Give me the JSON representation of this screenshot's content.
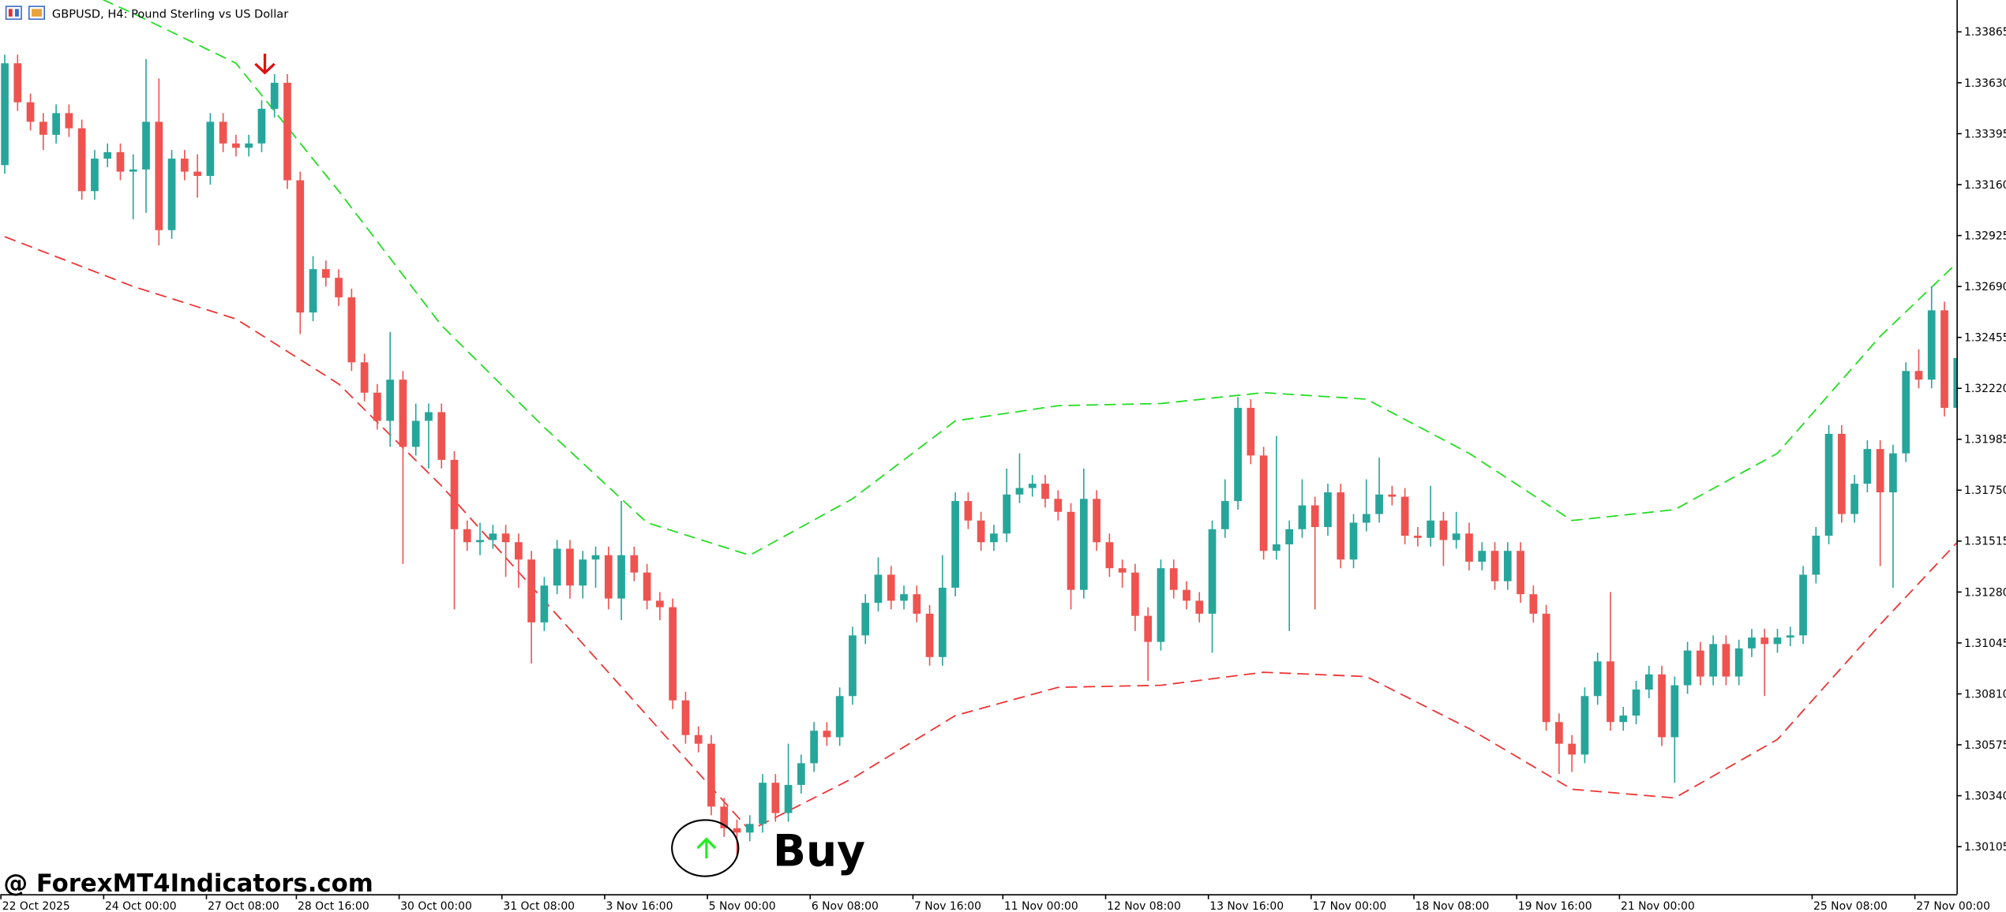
{
  "chart_data": {
    "type": "candlestick",
    "title": "GBPUSD, H4:  Pound Sterling vs US Dollar",
    "watermark": "@ ForexMT4Indicators.com",
    "annotation": "Buy",
    "up_color": "#26a69a",
    "down_color": "#ef5350",
    "ylim": [
      1.29886,
      1.34012
    ],
    "yticks": [
      1.33865,
      {
        "value": 1.3363,
        "label": "1.33630"
      },
      1.33395,
      {
        "value": 1.3316,
        "label": "1.33160"
      },
      1.32925,
      {
        "value": 1.3269,
        "label": "1.32690"
      },
      1.32455,
      {
        "value": 1.3222,
        "label": "1.32220"
      },
      1.31985,
      {
        "value": 1.3175,
        "label": "1.31750"
      },
      1.31515,
      {
        "value": 1.3128,
        "label": "1.31280"
      },
      1.31045,
      {
        "value": 1.3081,
        "label": "1.30810"
      },
      1.30575,
      {
        "value": 1.3034,
        "label": "1.30340"
      },
      1.30105
    ],
    "xticks": [
      {
        "value": 0,
        "label": "22 Oct 2025"
      },
      {
        "value": 8,
        "label": "24 Oct 00:00"
      },
      {
        "value": 16,
        "label": "27 Oct 08:00"
      },
      {
        "value": 23,
        "label": "28 Oct 16:00"
      },
      {
        "value": 31,
        "label": "30 Oct 00:00"
      },
      {
        "value": 39,
        "label": "31 Oct 08:00"
      },
      {
        "value": 47,
        "label": "3 Nov 16:00"
      },
      {
        "value": 55,
        "label": "5 Nov 00:00"
      },
      {
        "value": 63,
        "label": "6 Nov 08:00"
      },
      {
        "value": 71,
        "label": "7 Nov 16:00"
      },
      {
        "value": 78,
        "label": "11 Nov 00:00"
      },
      {
        "value": 86,
        "label": "12 Nov 08:00"
      },
      {
        "value": 94,
        "label": "13 Nov 16:00"
      },
      {
        "value": 102,
        "label": "17 Nov 00:00"
      },
      {
        "value": 110,
        "label": "18 Nov 08:00"
      },
      {
        "value": 118,
        "label": "19 Nov 16:00"
      },
      {
        "value": 126,
        "label": "21 Nov 00:00"
      },
      {
        "value": 141,
        "label": "25 Nov 08:00"
      },
      {
        "value": 149,
        "label": "27 Nov 00:00"
      }
    ],
    "candles": [
      [
        1.3325,
        1.3376,
        1.3321,
        1.3372
      ],
      [
        1.3372,
        1.3376,
        1.335,
        1.3354
      ],
      [
        1.3354,
        1.3358,
        1.3341,
        1.3345
      ],
      [
        1.3345,
        1.3349,
        1.3332,
        1.3339
      ],
      [
        1.3339,
        1.3353,
        1.3335,
        1.3349
      ],
      [
        1.3349,
        1.3353,
        1.3338,
        1.3342
      ],
      [
        1.3342,
        1.3346,
        1.3309,
        1.3313
      ],
      [
        1.3313,
        1.3332,
        1.3309,
        1.3328
      ],
      [
        1.3328,
        1.3335,
        1.3324,
        1.3331
      ],
      [
        1.3331,
        1.3335,
        1.3318,
        1.3322
      ],
      [
        1.3322,
        1.333,
        1.33,
        1.3323
      ],
      [
        1.3323,
        1.3374,
        1.3303,
        1.3345
      ],
      [
        1.3345,
        1.3365,
        1.3288,
        1.3295
      ],
      [
        1.3295,
        1.3332,
        1.3291,
        1.3328
      ],
      [
        1.3328,
        1.3332,
        1.3318,
        1.3322
      ],
      [
        1.3322,
        1.333,
        1.331,
        1.332
      ],
      [
        1.332,
        1.3349,
        1.3316,
        1.3345
      ],
      [
        1.3345,
        1.3349,
        1.3331,
        1.3335
      ],
      [
        1.3335,
        1.3339,
        1.3329,
        1.3333
      ],
      [
        1.3333,
        1.3339,
        1.3329,
        1.3335
      ],
      [
        1.3335,
        1.3355,
        1.3331,
        1.3351
      ],
      [
        1.3351,
        1.3367,
        1.3347,
        1.3363
      ],
      [
        1.3363,
        1.3367,
        1.3314,
        1.3318
      ],
      [
        1.3318,
        1.3322,
        1.3247,
        1.3257
      ],
      [
        1.3257,
        1.3283,
        1.3253,
        1.3277
      ],
      [
        1.3277,
        1.3281,
        1.3269,
        1.3273
      ],
      [
        1.3273,
        1.3277,
        1.326,
        1.3264
      ],
      [
        1.3264,
        1.3268,
        1.323,
        1.3234
      ],
      [
        1.3234,
        1.3238,
        1.3216,
        1.322
      ],
      [
        1.322,
        1.3224,
        1.3203,
        1.3207
      ],
      [
        1.3207,
        1.3248,
        1.3195,
        1.3226
      ],
      [
        1.3226,
        1.323,
        1.3141,
        1.3195
      ],
      [
        1.3195,
        1.3215,
        1.3191,
        1.3207
      ],
      [
        1.3207,
        1.3215,
        1.3185,
        1.3211
      ],
      [
        1.3211,
        1.3215,
        1.3185,
        1.3189
      ],
      [
        1.3189,
        1.3193,
        1.312,
        1.3157
      ],
      [
        1.3157,
        1.3161,
        1.3147,
        1.3151
      ],
      [
        1.3151,
        1.316,
        1.3145,
        1.3152
      ],
      [
        1.3152,
        1.3159,
        1.3148,
        1.3155
      ],
      [
        1.3155,
        1.3159,
        1.3135,
        1.3151
      ],
      [
        1.3151,
        1.3155,
        1.313,
        1.3143
      ],
      [
        1.3143,
        1.3147,
        1.3095,
        1.3114
      ],
      [
        1.3114,
        1.3135,
        1.311,
        1.3131
      ],
      [
        1.3131,
        1.3152,
        1.3127,
        1.3148
      ],
      [
        1.3148,
        1.3152,
        1.3125,
        1.3131
      ],
      [
        1.3131,
        1.3147,
        1.3125,
        1.3143
      ],
      [
        1.3143,
        1.3149,
        1.313,
        1.3145
      ],
      [
        1.3145,
        1.3149,
        1.312,
        1.3125
      ],
      [
        1.3125,
        1.317,
        1.3115,
        1.3145
      ],
      [
        1.3145,
        1.3149,
        1.3133,
        1.3137
      ],
      [
        1.3137,
        1.3141,
        1.312,
        1.3124
      ],
      [
        1.3124,
        1.3128,
        1.3115,
        1.3121
      ],
      [
        1.3121,
        1.3125,
        1.3074,
        1.3078
      ],
      [
        1.3078,
        1.3082,
        1.3058,
        1.3062
      ],
      [
        1.3062,
        1.3066,
        1.3054,
        1.3058
      ],
      [
        1.3058,
        1.3062,
        1.3025,
        1.3029
      ],
      [
        1.3029,
        1.3033,
        1.3015,
        1.3019
      ],
      [
        1.3019,
        1.3023,
        1.3005,
        1.3017
      ],
      [
        1.3017,
        1.3025,
        1.3013,
        1.3021
      ],
      [
        1.3021,
        1.3044,
        1.3017,
        1.304
      ],
      [
        1.304,
        1.3044,
        1.3022,
        1.3026
      ],
      [
        1.3026,
        1.3058,
        1.3022,
        1.3039
      ],
      [
        1.3039,
        1.3053,
        1.3035,
        1.3049
      ],
      [
        1.3049,
        1.3068,
        1.3045,
        1.3064
      ],
      [
        1.3064,
        1.3068,
        1.3057,
        1.3061
      ],
      [
        1.3061,
        1.3084,
        1.3057,
        1.308
      ],
      [
        1.308,
        1.3112,
        1.3076,
        1.3108
      ],
      [
        1.3108,
        1.3127,
        1.3104,
        1.3123
      ],
      [
        1.3123,
        1.3144,
        1.3119,
        1.3136
      ],
      [
        1.3136,
        1.314,
        1.312,
        1.3124
      ],
      [
        1.3124,
        1.3131,
        1.312,
        1.3127
      ],
      [
        1.3127,
        1.3131,
        1.3114,
        1.3118
      ],
      [
        1.3118,
        1.3122,
        1.3094,
        1.3098
      ],
      [
        1.3098,
        1.3145,
        1.3094,
        1.313
      ],
      [
        1.313,
        1.3174,
        1.3126,
        1.317
      ],
      [
        1.317,
        1.3174,
        1.3157,
        1.3161
      ],
      [
        1.3161,
        1.3165,
        1.3147,
        1.3151
      ],
      [
        1.3151,
        1.3159,
        1.3147,
        1.3155
      ],
      [
        1.3155,
        1.3185,
        1.3151,
        1.3173
      ],
      [
        1.3173,
        1.3192,
        1.3169,
        1.3176
      ],
      [
        1.3176,
        1.3182,
        1.3172,
        1.3178
      ],
      [
        1.3178,
        1.3182,
        1.3167,
        1.3171
      ],
      [
        1.3171,
        1.3175,
        1.3161,
        1.3165
      ],
      [
        1.3165,
        1.3169,
        1.312,
        1.3129
      ],
      [
        1.3129,
        1.3185,
        1.3125,
        1.3171
      ],
      [
        1.3171,
        1.3175,
        1.3147,
        1.3151
      ],
      [
        1.3151,
        1.3155,
        1.3135,
        1.3139
      ],
      [
        1.3139,
        1.3143,
        1.313,
        1.3137
      ],
      [
        1.3137,
        1.3141,
        1.311,
        1.3117
      ],
      [
        1.3117,
        1.3121,
        1.3087,
        1.3105
      ],
      [
        1.3105,
        1.3143,
        1.3101,
        1.3139
      ],
      [
        1.3139,
        1.3143,
        1.3125,
        1.3129
      ],
      [
        1.3129,
        1.3133,
        1.312,
        1.3124
      ],
      [
        1.3124,
        1.3128,
        1.3114,
        1.3118
      ],
      [
        1.3118,
        1.3161,
        1.31,
        1.3157
      ],
      [
        1.3157,
        1.318,
        1.3153,
        1.317
      ],
      [
        1.317,
        1.3218,
        1.3166,
        1.3213
      ],
      [
        1.3213,
        1.3217,
        1.3187,
        1.3191
      ],
      [
        1.3191,
        1.3195,
        1.3143,
        1.3147
      ],
      [
        1.3147,
        1.32,
        1.3143,
        1.315
      ],
      [
        1.315,
        1.3161,
        1.311,
        1.3157
      ],
      [
        1.3157,
        1.318,
        1.3153,
        1.3168
      ],
      [
        1.3168,
        1.3172,
        1.312,
        1.3158
      ],
      [
        1.3158,
        1.3178,
        1.3154,
        1.3174
      ],
      [
        1.3174,
        1.3178,
        1.3139,
        1.3143
      ],
      [
        1.3143,
        1.3164,
        1.3139,
        1.316
      ],
      [
        1.316,
        1.318,
        1.3156,
        1.3164
      ],
      [
        1.3164,
        1.319,
        1.316,
        1.3173
      ],
      [
        1.3173,
        1.3177,
        1.3168,
        1.3172
      ],
      [
        1.3172,
        1.3176,
        1.315,
        1.3154
      ],
      [
        1.3154,
        1.3158,
        1.3149,
        1.3153
      ],
      [
        1.3153,
        1.3177,
        1.3149,
        1.3161
      ],
      [
        1.3161,
        1.3165,
        1.314,
        1.3152
      ],
      [
        1.3152,
        1.3165,
        1.3148,
        1.3155
      ],
      [
        1.3155,
        1.316,
        1.3138,
        1.3142
      ],
      [
        1.3142,
        1.3151,
        1.3138,
        1.3147
      ],
      [
        1.3147,
        1.3151,
        1.3129,
        1.3133
      ],
      [
        1.3133,
        1.3151,
        1.3129,
        1.3147
      ],
      [
        1.3147,
        1.3151,
        1.3123,
        1.3127
      ],
      [
        1.3127,
        1.3131,
        1.3114,
        1.3118
      ],
      [
        1.3118,
        1.3122,
        1.3064,
        1.3068
      ],
      [
        1.3068,
        1.3072,
        1.3044,
        1.3058
      ],
      [
        1.3058,
        1.3062,
        1.3045,
        1.3053
      ],
      [
        1.3053,
        1.3084,
        1.3049,
        1.308
      ],
      [
        1.308,
        1.31,
        1.3076,
        1.3096
      ],
      [
        1.3096,
        1.3128,
        1.3064,
        1.3068
      ],
      [
        1.3068,
        1.3075,
        1.3064,
        1.3071
      ],
      [
        1.3071,
        1.3087,
        1.3067,
        1.3083
      ],
      [
        1.3083,
        1.3094,
        1.3079,
        1.309
      ],
      [
        1.309,
        1.3094,
        1.3057,
        1.3061
      ],
      [
        1.3061,
        1.3089,
        1.304,
        1.3085
      ],
      [
        1.3085,
        1.3105,
        1.3081,
        1.3101
      ],
      [
        1.3101,
        1.3105,
        1.3085,
        1.3089
      ],
      [
        1.3089,
        1.3108,
        1.3085,
        1.3104
      ],
      [
        1.3104,
        1.3108,
        1.3085,
        1.3089
      ],
      [
        1.3089,
        1.3106,
        1.3085,
        1.3102
      ],
      [
        1.3102,
        1.3111,
        1.3098,
        1.3107
      ],
      [
        1.3107,
        1.3111,
        1.308,
        1.3104
      ],
      [
        1.3104,
        1.3111,
        1.31,
        1.3107
      ],
      [
        1.3107,
        1.3112,
        1.3103,
        1.3108
      ],
      [
        1.3108,
        1.314,
        1.3104,
        1.3136
      ],
      [
        1.3136,
        1.3158,
        1.3132,
        1.3154
      ],
      [
        1.3154,
        1.3205,
        1.315,
        1.3201
      ],
      [
        1.3201,
        1.3205,
        1.316,
        1.3164
      ],
      [
        1.3164,
        1.3182,
        1.316,
        1.3178
      ],
      [
        1.3178,
        1.3198,
        1.3174,
        1.3194
      ],
      [
        1.3194,
        1.3198,
        1.314,
        1.3174
      ],
      [
        1.3174,
        1.3196,
        1.313,
        1.3192
      ],
      [
        1.3192,
        1.3234,
        1.3188,
        1.323
      ],
      [
        1.323,
        1.324,
        1.3222,
        1.3226
      ],
      [
        1.3226,
        1.3269,
        1.3222,
        1.3258
      ],
      [
        1.3258,
        1.3262,
        1.3209,
        1.3213
      ],
      [
        1.3213,
        1.324,
        1.3209,
        1.3236
      ]
    ],
    "bands": [
      {
        "color": "#22dd22",
        "x": [
          0,
          10,
          18,
          26,
          34,
          42,
          50,
          58,
          66,
          74,
          82,
          90,
          98,
          106,
          114,
          122,
          130,
          138,
          146,
          152
        ],
        "values": [
          1.3422,
          1.3395,
          1.3372,
          1.3313,
          1.3251,
          1.3204,
          1.316,
          1.3145,
          1.3171,
          1.3207,
          1.3214,
          1.3215,
          1.322,
          1.3217,
          1.3192,
          1.3161,
          1.3166,
          1.3192,
          1.3246,
          1.328
        ]
      },
      {
        "color": "#ee3333",
        "x": [
          0,
          10,
          18,
          26,
          34,
          42,
          50,
          58,
          66,
          74,
          82,
          90,
          98,
          106,
          114,
          122,
          130,
          138,
          146,
          152
        ],
        "values": [
          1.3292,
          1.3269,
          1.3254,
          1.3224,
          1.3177,
          1.3124,
          1.3071,
          1.3018,
          1.3042,
          1.3071,
          1.3084,
          1.3085,
          1.3091,
          1.3089,
          1.3065,
          1.3037,
          1.3033,
          1.306,
          1.3113,
          1.3151
        ]
      }
    ]
  }
}
